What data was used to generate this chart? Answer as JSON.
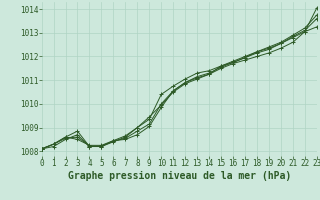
{
  "title": "Graphe pression niveau de la mer (hPa)",
  "bg_color": "#cde8dc",
  "grid_color": "#b0d4c4",
  "line_color": "#2d5a27",
  "xlim": [
    0,
    23
  ],
  "ylim": [
    1007.8,
    1014.3
  ],
  "xticks": [
    0,
    1,
    2,
    3,
    4,
    5,
    6,
    7,
    8,
    9,
    10,
    11,
    12,
    13,
    14,
    15,
    16,
    17,
    18,
    19,
    20,
    21,
    22,
    23
  ],
  "yticks": [
    1008,
    1009,
    1010,
    1011,
    1012,
    1013,
    1014
  ],
  "series": [
    [
      1008.1,
      1008.3,
      1008.6,
      1008.85,
      1008.2,
      1008.2,
      1008.45,
      1008.5,
      1008.7,
      1009.05,
      1009.85,
      1010.55,
      1010.9,
      1011.1,
      1011.25,
      1011.5,
      1011.7,
      1011.85,
      1012.0,
      1012.15,
      1012.35,
      1012.6,
      1013.05,
      1014.05
    ],
    [
      1008.1,
      1008.3,
      1008.6,
      1008.5,
      1008.25,
      1008.25,
      1008.45,
      1008.65,
      1009.0,
      1009.35,
      1010.4,
      1010.75,
      1011.05,
      1011.3,
      1011.4,
      1011.6,
      1011.8,
      1012.0,
      1012.2,
      1012.35,
      1012.55,
      1012.8,
      1013.05,
      1013.25
    ],
    [
      1008.1,
      1008.3,
      1008.55,
      1008.6,
      1008.22,
      1008.22,
      1008.42,
      1008.55,
      1008.85,
      1009.15,
      1010.0,
      1010.55,
      1010.9,
      1011.15,
      1011.3,
      1011.55,
      1011.75,
      1011.95,
      1012.15,
      1012.3,
      1012.55,
      1012.85,
      1013.1,
      1013.6
    ],
    [
      1008.1,
      1008.2,
      1008.5,
      1008.7,
      1008.2,
      1008.2,
      1008.4,
      1008.6,
      1009.0,
      1009.45,
      1009.95,
      1010.5,
      1010.85,
      1011.05,
      1011.25,
      1011.6,
      1011.75,
      1011.95,
      1012.2,
      1012.4,
      1012.6,
      1012.9,
      1013.2,
      1013.75
    ]
  ],
  "title_fontsize": 7,
  "tick_fontsize": 5.5,
  "title_color": "#2d5a27",
  "label_color": "#2d5a27"
}
